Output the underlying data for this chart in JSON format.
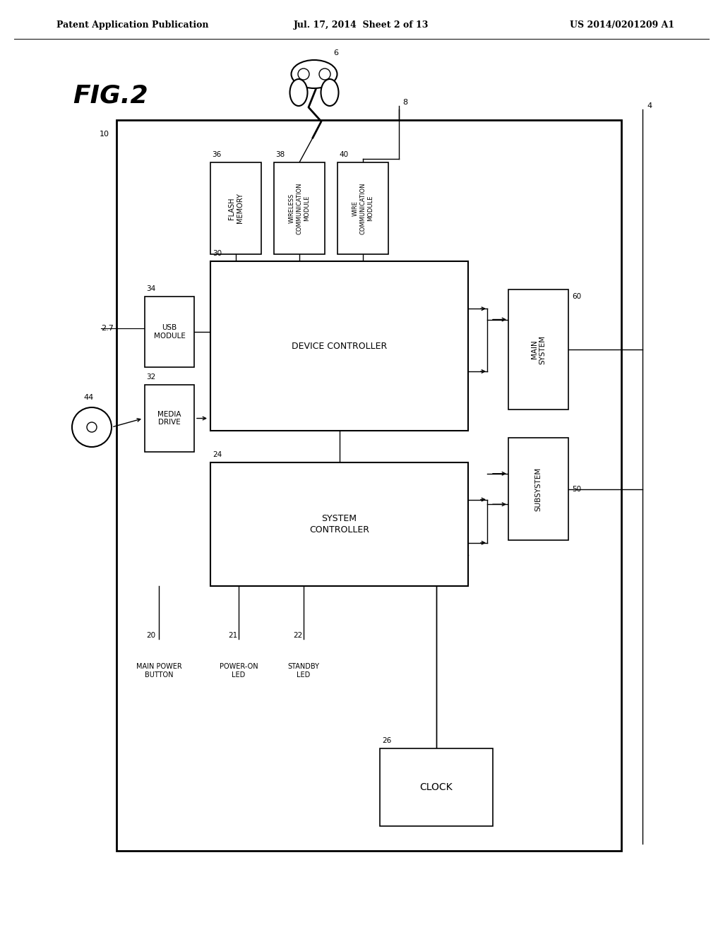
{
  "bg_color": "#ffffff",
  "header_left": "Patent Application Publication",
  "header_mid": "Jul. 17, 2014  Sheet 2 of 13",
  "header_right": "US 2014/0201209 A1"
}
